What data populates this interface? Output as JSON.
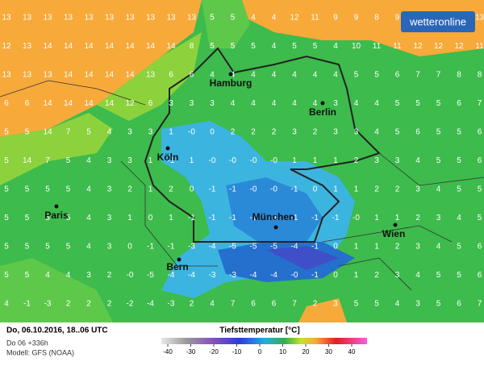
{
  "logo": "wetteronline",
  "grid": [
    [
      "13",
      "13",
      "13",
      "13",
      "13",
      "13",
      "13",
      "13",
      "13",
      "13",
      "5",
      "5",
      "4",
      "4",
      "12",
      "11",
      "9",
      "9",
      "8",
      "9",
      "9",
      "11",
      "12",
      "13"
    ],
    [
      "12",
      "13",
      "14",
      "14",
      "14",
      "14",
      "14",
      "14",
      "14",
      "8",
      "5",
      "5",
      "5",
      "4",
      "5",
      "5",
      "4",
      "10",
      "11",
      "11",
      "12",
      "12",
      "12",
      "11"
    ],
    [
      "13",
      "13",
      "13",
      "14",
      "14",
      "14",
      "14",
      "13",
      "6",
      "6",
      "4",
      "4",
      "4",
      "4",
      "4",
      "4",
      "4",
      "5",
      "5",
      "6",
      "7",
      "7",
      "8",
      "8"
    ],
    [
      "6",
      "6",
      "14",
      "14",
      "14",
      "14",
      "12",
      "6",
      "3",
      "3",
      "3",
      "4",
      "4",
      "4",
      "4",
      "4",
      "3",
      "4",
      "4",
      "5",
      "5",
      "5",
      "6",
      "7"
    ],
    [
      "5",
      "5",
      "14",
      "7",
      "5",
      "4",
      "3",
      "3",
      "1",
      "-0",
      "0",
      "2",
      "2",
      "2",
      "3",
      "2",
      "3",
      "3",
      "4",
      "5",
      "6",
      "5",
      "5",
      "6"
    ],
    [
      "5",
      "14",
      "7",
      "5",
      "4",
      "3",
      "3",
      "1",
      "-1",
      "1",
      "-0",
      "-0",
      "-0",
      "-0",
      "1",
      "1",
      "1",
      "2",
      "3",
      "3",
      "4",
      "5",
      "5",
      "6"
    ],
    [
      "5",
      "5",
      "5",
      "5",
      "4",
      "3",
      "2",
      "1",
      "2",
      "0",
      "-1",
      "-1",
      "-0",
      "-0",
      "-1",
      "0",
      "1",
      "1",
      "2",
      "2",
      "3",
      "4",
      "5",
      "5"
    ],
    [
      "5",
      "5",
      "5",
      "5",
      "4",
      "3",
      "1",
      "0",
      "1",
      "-1",
      "-1",
      "-1",
      "-1",
      "-1",
      "-1",
      "-1",
      "-1",
      "-0",
      "1",
      "1",
      "2",
      "3",
      "4",
      "5"
    ],
    [
      "5",
      "5",
      "5",
      "5",
      "4",
      "3",
      "0",
      "-1",
      "-1",
      "-3",
      "-4",
      "-5",
      "-5",
      "-5",
      "-4",
      "-1",
      "0",
      "1",
      "1",
      "2",
      "3",
      "4",
      "5",
      "6"
    ],
    [
      "5",
      "5",
      "4",
      "4",
      "3",
      "2",
      "-0",
      "-5",
      "-4",
      "-4",
      "-3",
      "-3",
      "-4",
      "-4",
      "-0",
      "-1",
      "0",
      "1",
      "2",
      "3",
      "4",
      "5",
      "5",
      "6"
    ],
    [
      "4",
      "-1",
      "-3",
      "2",
      "2",
      "2",
      "-2",
      "-4",
      "-3",
      "2",
      "4",
      "7",
      "6",
      "6",
      "7",
      "2",
      "3",
      "5",
      "5",
      "4",
      "3",
      "5",
      "6",
      "7"
    ]
  ],
  "cities": [
    {
      "name": "Hamburg"
    },
    {
      "name": "Berlin"
    },
    {
      "name": "Köln"
    },
    {
      "name": "Paris"
    },
    {
      "name": "München"
    },
    {
      "name": "Wien"
    },
    {
      "name": "Bern"
    }
  ],
  "footer": {
    "date": "Do, 06.10.2016, 18..06 UTC",
    "run": "Do 06 +336h",
    "model": "Modell: GFS (NOAA)"
  },
  "legend": {
    "title": "Tiefsttemperatur [°C]",
    "ticks": [
      -40,
      -30,
      -20,
      -10,
      0,
      10,
      20,
      30,
      40
    ]
  }
}
